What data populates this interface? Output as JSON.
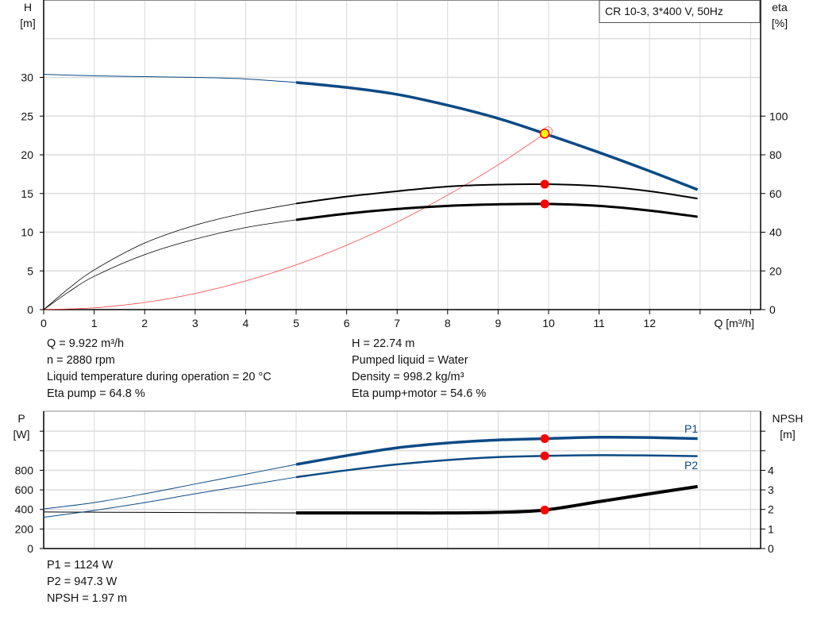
{
  "chart_data": [
    {
      "type": "line",
      "title": "CR 10-3, 3*400 V, 50Hz",
      "xlabel": "Q [m³/h]",
      "ylabel": "H\n[m]",
      "ylabel_left_lines": [
        "H",
        "[m]"
      ],
      "ylabel_right_lines": [
        "eta",
        "[%]"
      ],
      "xlim": [
        0,
        14
      ],
      "ylim_left": [
        0,
        40
      ],
      "ylim_right": [
        0,
        160
      ],
      "x_ticks": [
        0,
        1,
        2,
        3,
        4,
        5,
        6,
        7,
        8,
        9,
        10,
        11,
        12
      ],
      "y_ticks_left": [
        0,
        5,
        10,
        15,
        20,
        25,
        30
      ],
      "y_ticks_right": [
        0,
        20,
        40,
        60,
        80,
        100
      ],
      "grid": true,
      "series": [
        {
          "axis": "left",
          "color": "#0b4a85",
          "x": [
            0,
            1,
            2,
            3,
            4,
            5,
            6,
            7,
            8,
            9,
            9.922,
            11,
            12,
            12.95
          ],
          "values": [
            30.4,
            30.2,
            30.1,
            30.0,
            29.8,
            29.35,
            28.7,
            27.8,
            26.4,
            24.7,
            22.74,
            20.3,
            17.9,
            15.5
          ]
        },
        {
          "axis": "right",
          "color": "#000000",
          "x": [
            0,
            0.5,
            1,
            2,
            3,
            4,
            5,
            6,
            7,
            8,
            9,
            9.922,
            11,
            12,
            12.95
          ],
          "values": [
            0,
            11,
            20.5,
            34.4,
            43.6,
            50,
            54.8,
            58.4,
            61.2,
            63.6,
            64.6,
            64.8,
            63.8,
            61.2,
            57.4
          ]
        },
        {
          "axis": "right",
          "color": "#000000",
          "x": [
            0,
            0.5,
            1,
            2,
            3,
            4,
            5,
            6,
            7,
            8,
            9,
            9.922,
            11,
            12,
            12.95
          ],
          "values": [
            0,
            9.2,
            17.2,
            28.4,
            36.4,
            42.4,
            46.4,
            49.6,
            52,
            53.6,
            54.4,
            54.6,
            53.6,
            51.2,
            48
          ]
        },
        {
          "axis": "left",
          "color": "#ff0000",
          "x": [
            0,
            1,
            2,
            3,
            4,
            5,
            6,
            7,
            8,
            9,
            9.922
          ],
          "values": [
            0,
            0.23,
            0.92,
            2.08,
            3.7,
            5.78,
            8.32,
            11.3,
            14.8,
            18.7,
            22.74
          ]
        }
      ],
      "duty_point": {
        "x": 9.922,
        "h": 22.74,
        "eta_pump": 64.8,
        "eta_total": 54.6,
        "color": "#ffff00"
      }
    },
    {
      "type": "line",
      "ylabel_left_lines": [
        "P",
        "[W]"
      ],
      "ylabel_right_lines": [
        "NPSH",
        "[m]"
      ],
      "xlim": [
        0,
        14
      ],
      "ylim_left": [
        0,
        1400
      ],
      "ylim_right": [
        0,
        7
      ],
      "y_ticks_left": [
        0,
        200,
        400,
        600,
        800
      ],
      "y_ticks_right": [
        0,
        1,
        2,
        3,
        4
      ],
      "grid": true,
      "series": [
        {
          "name": "P1",
          "axis": "left",
          "color": "#0b4a85",
          "x": [
            0,
            1,
            2,
            3,
            4,
            5,
            6,
            7,
            8,
            9,
            9.922,
            11,
            12,
            12.95
          ],
          "values": [
            405,
            470,
            560,
            660,
            760,
            860,
            950,
            1030,
            1080,
            1110,
            1124,
            1138,
            1135,
            1124
          ]
        },
        {
          "name": "P2",
          "axis": "left",
          "color": "#0b4a85",
          "x": [
            0,
            1,
            2,
            3,
            4,
            5,
            6,
            7,
            8,
            9,
            9.922,
            11,
            12,
            12.95
          ],
          "values": [
            320,
            390,
            470,
            560,
            645,
            730,
            800,
            860,
            905,
            935,
            947.3,
            955,
            952,
            945
          ]
        },
        {
          "axis": "right",
          "color": "#000000",
          "x": [
            0,
            1,
            2,
            3,
            4,
            5,
            6,
            7,
            8,
            9,
            9.922,
            11,
            12,
            12.95
          ],
          "values": [
            1.87,
            1.86,
            1.85,
            1.84,
            1.83,
            1.82,
            1.82,
            1.82,
            1.82,
            1.85,
            1.97,
            2.4,
            2.8,
            3.17
          ]
        }
      ],
      "duty_point": {
        "x": 9.922,
        "p1": 1124,
        "p2": 947.3,
        "npsh": 1.97
      }
    }
  ],
  "info_top_left": [
    "Q = 9.922 m³/h",
    "n = 2880 rpm",
    "Liquid temperature during operation = 20 °C",
    "Eta pump = 64.8 %"
  ],
  "info_top_right": [
    "H = 22.74 m",
    "Pumped liquid = Water",
    "Density = 998.2 kg/m³",
    "Eta pump+motor = 54.6 %"
  ],
  "info_bottom": [
    "P1 = 1124 W",
    "P2 = 947.3 W",
    "NPSH = 1.97 m"
  ]
}
